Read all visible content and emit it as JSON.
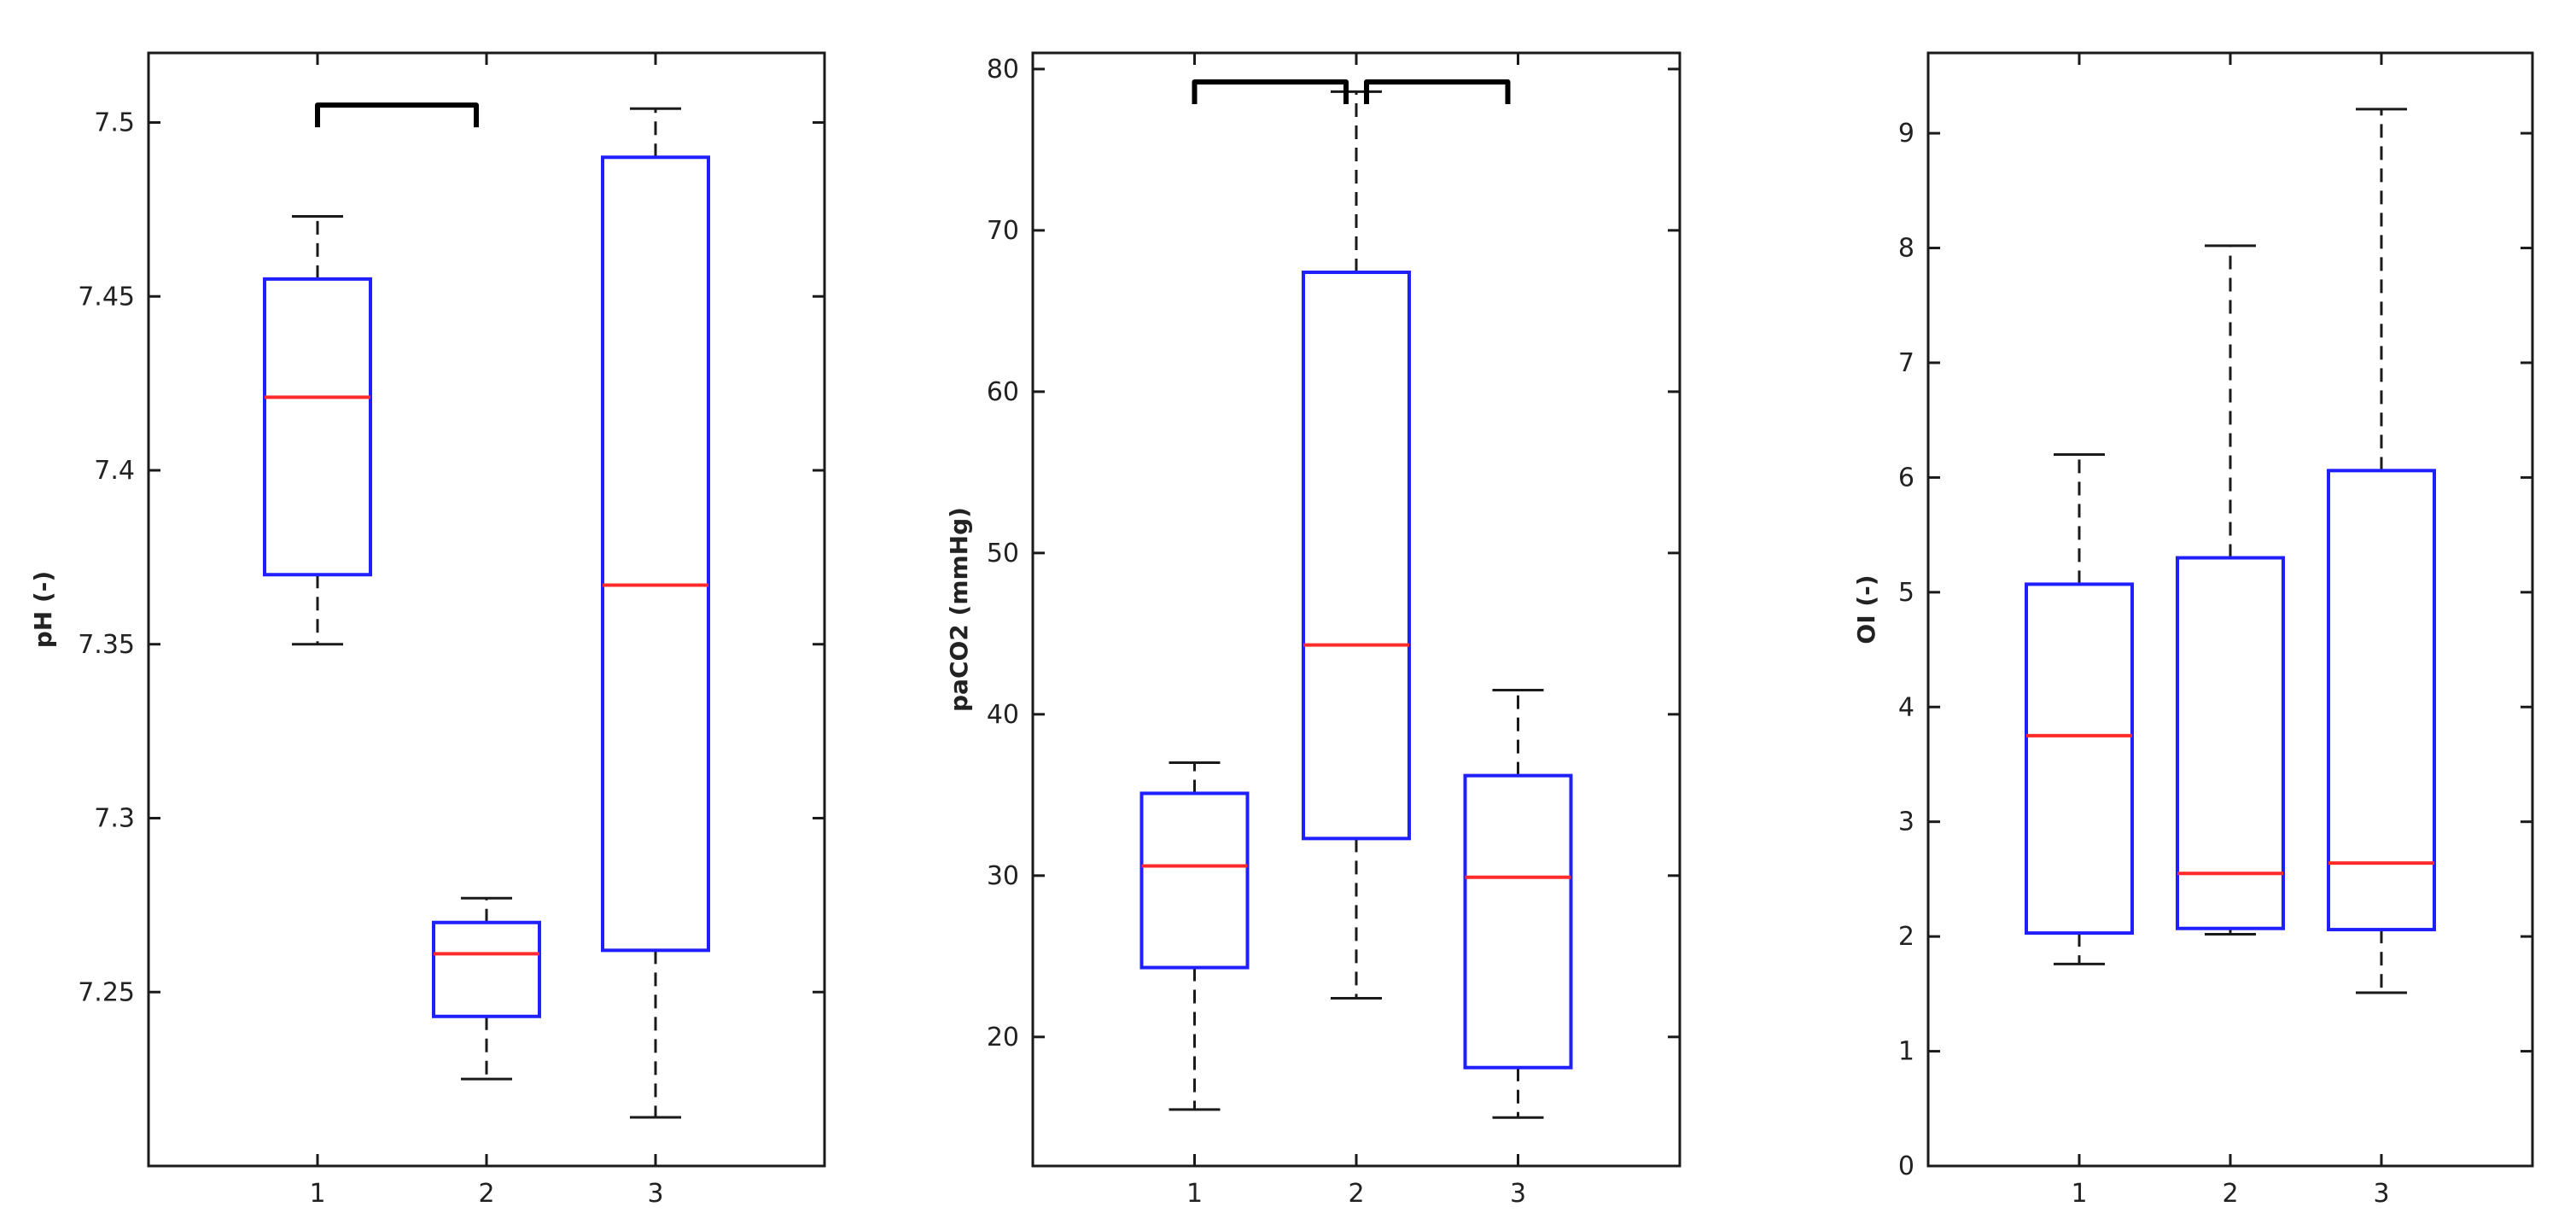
{
  "chart_data": [
    {
      "type": "box",
      "ylabel": "pH (-)",
      "categories": [
        "1",
        "2",
        "3"
      ],
      "ylim": [
        7.2,
        7.52
      ],
      "yticks": [
        "7.25",
        "7.3",
        "7.35",
        "7.4",
        "7.45",
        "7.5"
      ],
      "boxes": [
        {
          "category": "1",
          "whisker_low": 7.35,
          "q1": 7.37,
          "median": 7.421,
          "q3": 7.455,
          "whisker_high": 7.473
        },
        {
          "category": "2",
          "whisker_low": 7.225,
          "q1": 7.243,
          "median": 7.261,
          "q3": 7.27,
          "whisker_high": 7.277
        },
        {
          "category": "3",
          "whisker_low": 7.214,
          "q1": 7.262,
          "median": 7.367,
          "q3": 7.49,
          "whisker_high": 7.504
        }
      ],
      "brackets": [
        {
          "from": "1",
          "to": "2",
          "level": 7.505
        }
      ]
    },
    {
      "type": "box",
      "ylabel": "paCO2 (mmHg)",
      "categories": [
        "1",
        "2",
        "3"
      ],
      "ylim": [
        12,
        81
      ],
      "yticks": [
        "20",
        "30",
        "40",
        "50",
        "60",
        "70",
        "80"
      ],
      "boxes": [
        {
          "category": "1",
          "whisker_low": 15.5,
          "q1": 24.3,
          "median": 30.6,
          "q3": 35.1,
          "whisker_high": 37.0
        },
        {
          "category": "2",
          "whisker_low": 22.4,
          "q1": 32.3,
          "median": 44.3,
          "q3": 67.4,
          "whisker_high": 78.6
        },
        {
          "category": "3",
          "whisker_low": 15.0,
          "q1": 18.1,
          "median": 29.9,
          "q3": 36.2,
          "whisker_high": 41.5
        }
      ],
      "brackets": [
        {
          "from": "1",
          "to": "2",
          "level": 79.2
        },
        {
          "from": "2",
          "to": "3",
          "level": 79.2
        }
      ]
    },
    {
      "type": "box",
      "ylabel": "OI (-)",
      "categories": [
        "1",
        "2",
        "3"
      ],
      "ylim": [
        0,
        9.7
      ],
      "yticks": [
        "0",
        "1",
        "2",
        "3",
        "4",
        "5",
        "6",
        "7",
        "8",
        "9"
      ],
      "boxes": [
        {
          "category": "1",
          "whisker_low": 1.76,
          "q1": 2.03,
          "median": 3.75,
          "q3": 5.07,
          "whisker_high": 6.2
        },
        {
          "category": "2",
          "whisker_low": 2.02,
          "q1": 2.07,
          "median": 2.55,
          "q3": 5.3,
          "whisker_high": 8.02
        },
        {
          "category": "3",
          "whisker_low": 1.51,
          "q1": 2.06,
          "median": 2.64,
          "q3": 6.06,
          "whisker_high": 9.21
        }
      ],
      "brackets": []
    }
  ],
  "colors": {
    "box": "#1f1fff",
    "median": "#ff2a2a",
    "whisker": "#1a1a1a",
    "frame": "#1a1a1a",
    "bracket": "#000000"
  }
}
